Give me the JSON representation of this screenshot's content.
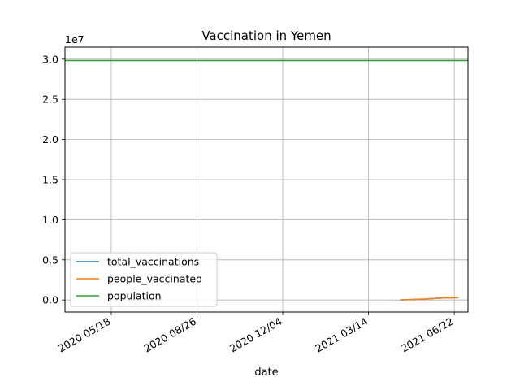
{
  "chart_data": {
    "type": "line",
    "title": "Vaccination in Yemen",
    "xlabel": "date",
    "ylabel": "",
    "y_offset_label": "1e7",
    "y_scale": 10000000,
    "x_type": "date",
    "xlim": [
      "2020-03-25",
      "2021-07-08"
    ],
    "ylim": [
      -1500000,
      31500000
    ],
    "x_ticks": [
      "2020-05-18",
      "2020-08-26",
      "2020-12-04",
      "2021-03-14",
      "2021-06-22"
    ],
    "x_tick_labels": [
      "2020 05/18",
      "2020 08/26",
      "2020 12/04",
      "2021 03/14",
      "2021 06/22"
    ],
    "y_ticks": [
      0,
      5000000,
      10000000,
      15000000,
      20000000,
      25000000,
      30000000
    ],
    "y_tick_labels": [
      "0.0",
      "0.5",
      "1.0",
      "1.5",
      "2.0",
      "2.5",
      "3.0"
    ],
    "grid": true,
    "legend_position": "lower-left",
    "series": [
      {
        "name": "total_vaccinations",
        "color": "#1f77b4",
        "x": [
          "2021-04-20",
          "2021-05-20",
          "2021-06-05",
          "2021-06-27"
        ],
        "y": [
          10000,
          120000,
          230000,
          300000
        ]
      },
      {
        "name": "people_vaccinated",
        "color": "#ff7f0e",
        "x": [
          "2021-04-20",
          "2021-05-20",
          "2021-06-05",
          "2021-06-27"
        ],
        "y": [
          10000,
          120000,
          230000,
          300000
        ]
      },
      {
        "name": "population",
        "color": "#2ca02c",
        "x": [
          "2020-03-25",
          "2021-07-08"
        ],
        "y": [
          29825968,
          29825968
        ]
      }
    ]
  }
}
